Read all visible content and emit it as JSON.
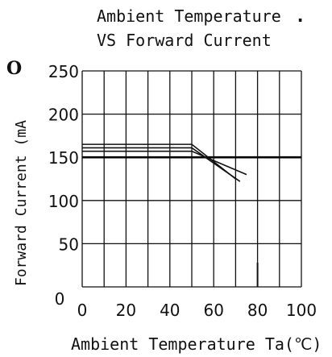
{
  "chart_data": {
    "type": "line",
    "title_line1": "Ambient Temperature",
    "title_dot": ".",
    "title_line2": "VS Forward Current",
    "xlabel": "Ambient Temperature Ta(℃)",
    "ylabel": "Forward Current (mA",
    "ylabel_corner": "O",
    "xlim": [
      0,
      100
    ],
    "ylim": [
      0,
      250
    ],
    "x_ticks": [
      "0",
      "20",
      "40",
      "60",
      "80",
      "100"
    ],
    "y_ticks": [
      "0",
      "50",
      "100",
      "150",
      "200",
      "250"
    ],
    "grid": true,
    "reference_line": {
      "y": 150
    },
    "series": [
      {
        "x": [
          0,
          50,
          70
        ],
        "y": [
          165,
          165,
          125
        ]
      },
      {
        "x": [
          0,
          50,
          72
        ],
        "y": [
          161,
          161,
          122
        ]
      },
      {
        "x": [
          0,
          50,
          75
        ],
        "y": [
          157,
          157,
          130
        ]
      }
    ],
    "short_tick": {
      "x": 80,
      "y0": 0,
      "y1": 28
    }
  }
}
